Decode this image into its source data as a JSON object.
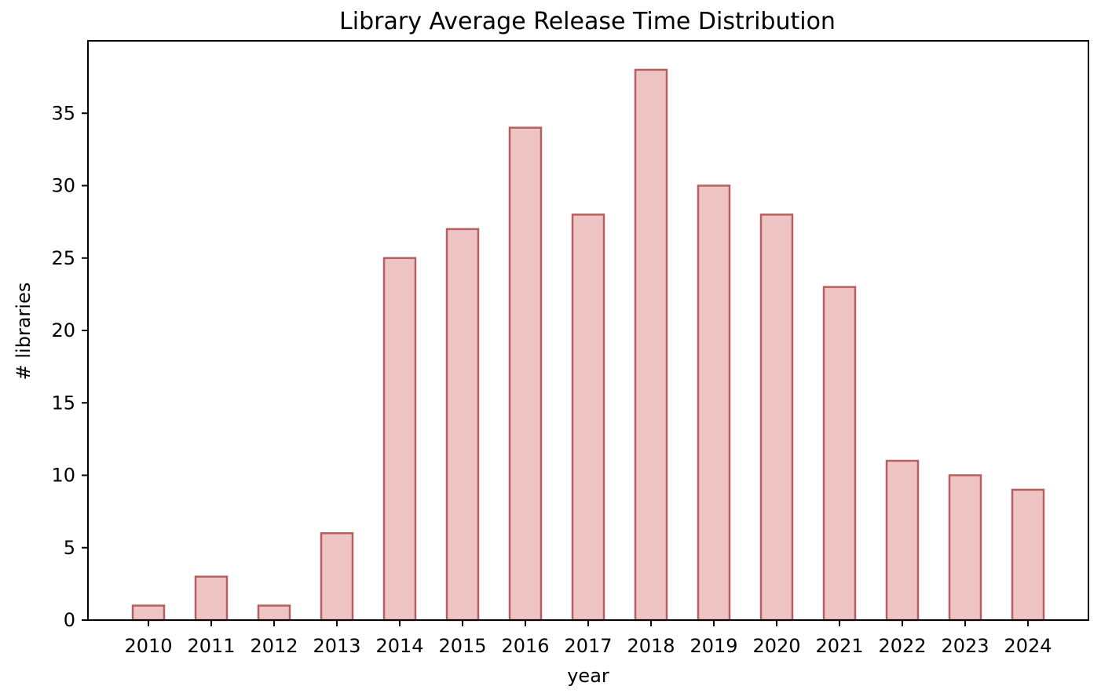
{
  "chart_data": {
    "type": "bar",
    "title": "Library Average Release Time Distribution",
    "xlabel": "year",
    "ylabel": "# libraries",
    "categories": [
      "2010",
      "2011",
      "2012",
      "2013",
      "2014",
      "2015",
      "2016",
      "2017",
      "2018",
      "2019",
      "2020",
      "2021",
      "2022",
      "2023",
      "2024"
    ],
    "values": [
      1,
      3,
      1,
      6,
      25,
      27,
      34,
      28,
      38,
      30,
      28,
      23,
      11,
      10,
      9
    ],
    "ylim": [
      0,
      40
    ],
    "yticks": [
      0,
      5,
      10,
      15,
      20,
      25,
      30,
      35
    ],
    "grid": false,
    "legend": "none",
    "bar_fill_color": "#efc4c4",
    "bar_edge_color": "#b5605e"
  }
}
